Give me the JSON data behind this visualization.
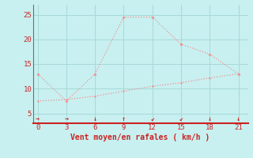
{
  "bg_color": "#c8f0f0",
  "line_color": "#f09090",
  "grid_color": "#a8d8d8",
  "axis_color": "#cc2222",
  "text_color": "#cc2222",
  "xlabel": "Vent moyen/en rafales ( km/h )",
  "xlim": [
    -0.5,
    22
  ],
  "ylim": [
    3,
    27
  ],
  "xticks": [
    0,
    3,
    6,
    9,
    12,
    15,
    18,
    21
  ],
  "yticks": [
    5,
    10,
    15,
    20,
    25
  ],
  "line1_x": [
    0,
    3,
    6,
    9,
    12,
    15,
    18,
    21
  ],
  "line1_y": [
    13,
    7.5,
    13,
    24.5,
    24.5,
    19,
    17,
    13
  ],
  "line2_x": [
    0,
    3,
    6,
    9,
    12,
    15,
    18,
    21
  ],
  "line2_y": [
    7.5,
    7.8,
    8.5,
    9.5,
    10.5,
    11.2,
    12.2,
    13.0
  ],
  "arrow_symbols": [
    "→",
    "→",
    "↓",
    "↑",
    "↙",
    "↙",
    "↓",
    "↓"
  ],
  "xlabel_fontsize": 7,
  "tick_fontsize": 6.5,
  "arrow_fontsize": 6
}
